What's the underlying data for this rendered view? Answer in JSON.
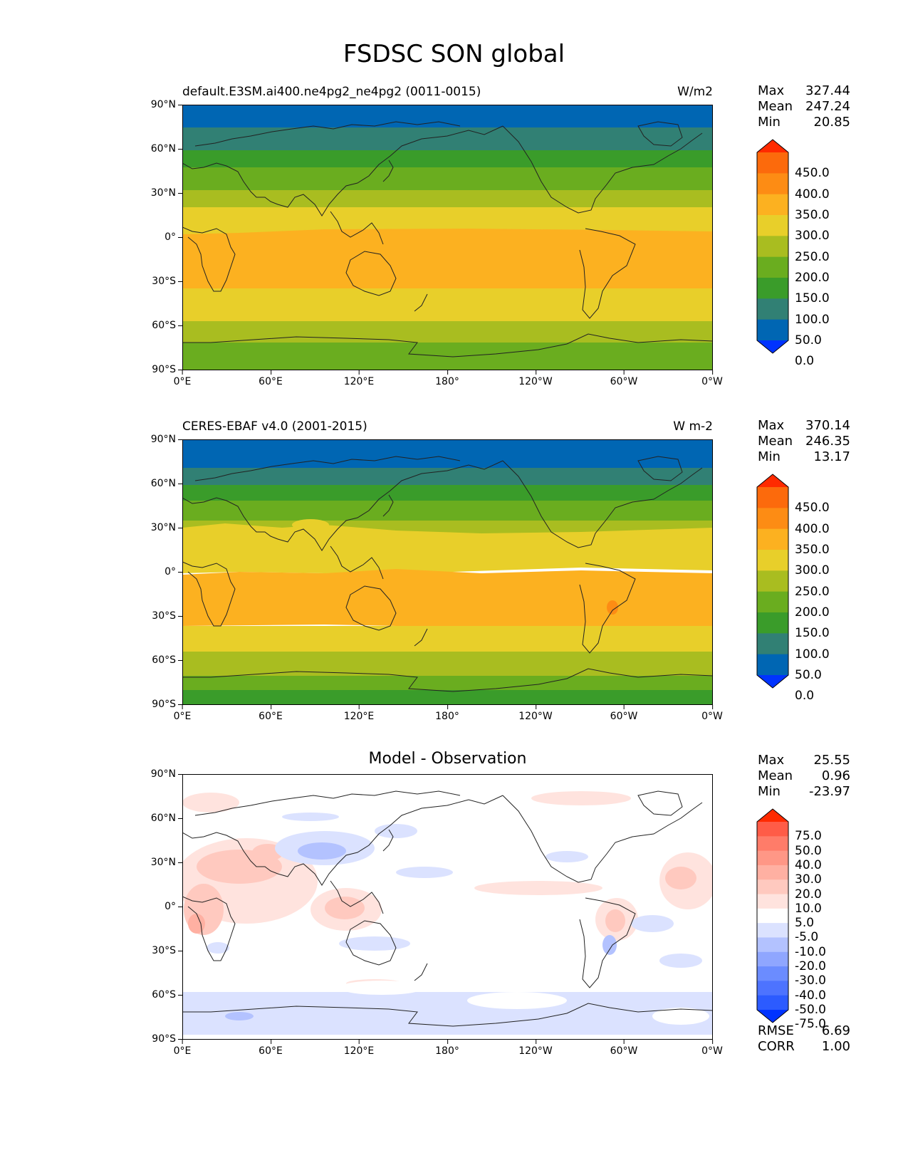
{
  "figure": {
    "title": "FSDSC SON global"
  },
  "axes": {
    "lat_labels": [
      "90°N",
      "60°N",
      "30°N",
      "0°",
      "30°S",
      "60°S",
      "90°S"
    ],
    "lon_labels": [
      "0°E",
      "60°E",
      "120°E",
      "180°",
      "120°W",
      "60°W",
      "0°W"
    ]
  },
  "panels": [
    {
      "title_left": "default.E3SM.ai400.ne4pg2_ne4pg2 (0011-0015)",
      "title_center": "",
      "units": "W/m2",
      "stats": {
        "max_label": "Max",
        "max": "327.44",
        "mean_label": "Mean",
        "mean": "247.24",
        "min_label": "Min",
        "min": "20.85"
      },
      "colorbar_labels": [
        "450.0",
        "400.0",
        "350.0",
        "300.0",
        "250.0",
        "200.0",
        "150.0",
        "100.0",
        "50.0",
        "0.0"
      ]
    },
    {
      "title_left": "CERES-EBAF v4.0 (2001-2015)",
      "title_center": "",
      "units": "W m-2",
      "stats": {
        "max_label": "Max",
        "max": "370.14",
        "mean_label": "Mean",
        "mean": "246.35",
        "min_label": "Min",
        "min": "13.17"
      },
      "colorbar_labels": [
        "450.0",
        "400.0",
        "350.0",
        "300.0",
        "250.0",
        "200.0",
        "150.0",
        "100.0",
        "50.0",
        "0.0"
      ]
    },
    {
      "title_left": "",
      "title_center": "Model - Observation",
      "units": "",
      "stats": {
        "max_label": "Max",
        "max": "25.55",
        "mean_label": "Mean",
        "mean": "0.96",
        "min_label": "Min",
        "min": "-23.97"
      },
      "colorbar_labels": [
        "75.0",
        "50.0",
        "40.0",
        "30.0",
        "20.0",
        "10.0",
        "5.0",
        "-5.0",
        "-10.0",
        "-20.0",
        "-30.0",
        "-40.0",
        "-50.0",
        "-75.0"
      ],
      "metrics": {
        "rmse_label": "RMSE",
        "rmse": "6.69",
        "corr_label": "CORR",
        "corr": "1.00"
      }
    }
  ],
  "colors": {
    "abs_scale": [
      "#0033ff",
      "#0066b3",
      "#318074",
      "#3a9c2a",
      "#6aad1f",
      "#a9bd20",
      "#e8cf2a",
      "#fcb120",
      "#fd8c14",
      "#fc6a0c",
      "#ff2a00"
    ],
    "diff_scale": [
      "#0033ff",
      "#2c5bff",
      "#4d73ff",
      "#6b8cff",
      "#8fa6ff",
      "#b3c2ff",
      "#dbe2ff",
      "#ffffff",
      "#ffe3de",
      "#ffc9bf",
      "#ffb0a2",
      "#ff9786",
      "#ff7c69",
      "#ff5c47",
      "#ff2a00"
    ]
  }
}
